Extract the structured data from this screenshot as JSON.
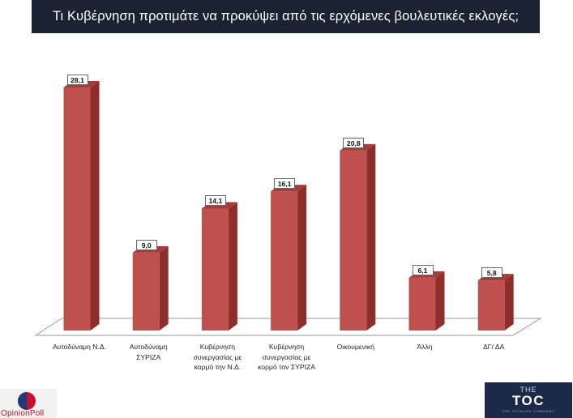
{
  "chart_data": {
    "type": "bar",
    "title": "Τι Κυβέρνηση προτιμάτε να προκύψει από τις ερχόμενες βουλευτικές εκλογές;",
    "categories": [
      "Αυτοδύναμη Ν.Δ.",
      "Αυτοδύναμη\nΣΥΡΙΖΑ",
      "Κυβέρνηση\nσυνεργασίας με\nκορμό την Ν.Δ.",
      "Κυβέρνηση\nσυνεργασίας με\nκορμό τον ΣΥΡΙΖΑ",
      "Οικουμενική",
      "Άλλη",
      "ΔΓ/ ΔΑ"
    ],
    "values": [
      28.1,
      9.0,
      14.1,
      16.1,
      20.8,
      6.1,
      5.8
    ],
    "value_labels": [
      "28,1",
      "9,0",
      "14,1",
      "16,1",
      "20,8",
      "6,1",
      "5,8"
    ],
    "ylim": [
      0,
      30
    ],
    "grid": false,
    "style": "3d-column",
    "colors": {
      "bar_front": "#c0504d",
      "bar_side": "#8b2e2c",
      "bar_top": "#a53c39",
      "floor": "#ffffff",
      "floor_edge": "#9a9a9a"
    }
  },
  "logos": {
    "opinionpoll_text": "OpinionPoll",
    "toc_the": "THE",
    "toc_main": "TOC",
    "toc_sub": "THE OPINION COMPANY"
  }
}
